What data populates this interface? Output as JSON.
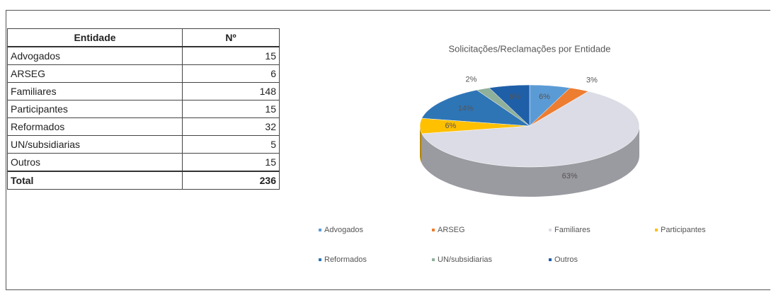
{
  "table": {
    "header": [
      "Entidade",
      "Nº"
    ],
    "rows": [
      [
        "Advogados",
        15
      ],
      [
        "ARSEG",
        6
      ],
      [
        "Familiares",
        148
      ],
      [
        "Participantes",
        15
      ],
      [
        "Reformados",
        32
      ],
      [
        "UN/subsidiarias",
        5
      ],
      [
        "Outros",
        15
      ]
    ],
    "total": [
      "Total",
      236
    ]
  },
  "chart_data": {
    "type": "pie",
    "title": "Solicitações/Reclamações por Entidade",
    "categories": [
      "Advogados",
      "ARSEG",
      "Familiares",
      "Participantes",
      "Reformados",
      "UN/subsidiarias",
      "Outros"
    ],
    "values": [
      6,
      3,
      63,
      6,
      14,
      2,
      6
    ],
    "value_labels": [
      "6%",
      "3%",
      "63%",
      "6%",
      "14%",
      "2%",
      "6%"
    ],
    "colors": [
      "#5b9bd5",
      "#ed7d31",
      "#dcdce6",
      "#ffc000",
      "#2e75b6",
      "#8fb09a",
      "#1f5fa8"
    ],
    "legend": "bottom"
  }
}
